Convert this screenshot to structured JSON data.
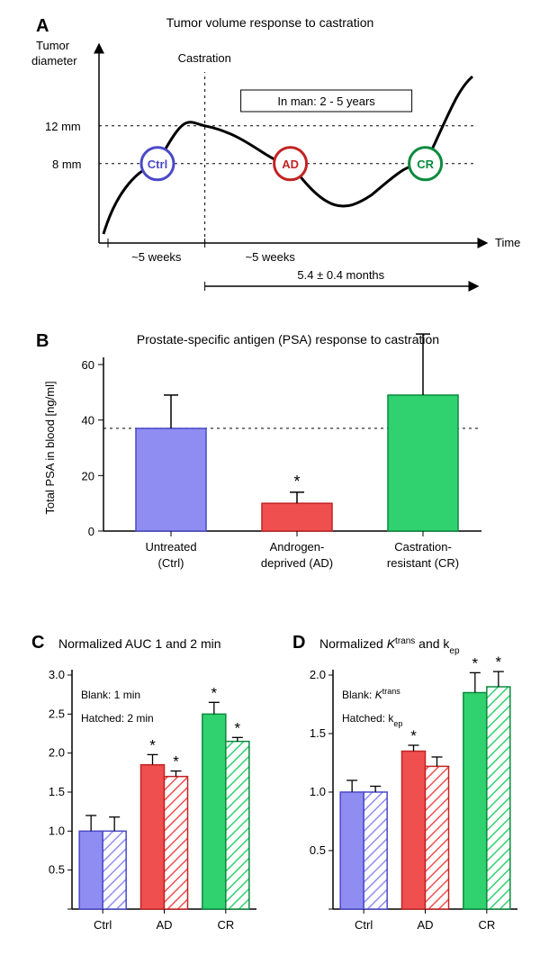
{
  "colors": {
    "ctrl_fill": "#8f8df2",
    "ctrl_stroke": "#4a49c8",
    "ad_fill": "#ef4f4f",
    "ad_stroke": "#c22323",
    "cr_fill": "#2fd26f",
    "cr_stroke": "#0c8a3e",
    "black": "#000000",
    "white": "#ffffff",
    "bg": "#ffffff"
  },
  "panelA": {
    "label": "A",
    "title": "Tumor volume response to castration",
    "ylabel_top": "Tumor",
    "ylabel_bottom": "diameter",
    "xlabel": "Time",
    "castration_label": "Castration",
    "inman_label": "In man: 2 - 5 years",
    "ytick1": "12 mm",
    "ytick2": "8 mm",
    "xtick1": "~5 weeks",
    "xtick2": "~5 weeks",
    "duration": "5.4 ± 0.4 months",
    "nodes": {
      "ctrl": "Ctrl",
      "ad": "AD",
      "cr": "CR"
    }
  },
  "panelB": {
    "label": "B",
    "title": "Prostate-specific antigen (PSA) response to castration",
    "ylabel": "Total PSA in blood [ng/ml]",
    "ylim": [
      0,
      60
    ],
    "yticks": [
      0,
      20,
      40,
      60
    ],
    "ref_line": 37,
    "bars": [
      {
        "cat": "Untreated",
        "sub": "(Ctrl)",
        "value": 37,
        "err": 12,
        "annot": ""
      },
      {
        "cat": "Androgen-",
        "sub": "deprived (AD)",
        "value": 10,
        "err": 4,
        "annot": "*"
      },
      {
        "cat": "Castration-",
        "sub": "resistant (CR)",
        "value": 49,
        "err": 22,
        "annot": ""
      }
    ]
  },
  "panelC": {
    "label": "C",
    "title": "Normalized AUC 1 and 2 min",
    "legend_blank": "Blank: 1 min",
    "legend_hatch": "Hatched: 2 min",
    "ylim": [
      0,
      3.0
    ],
    "yticks": [
      0,
      "0.5",
      "1.0",
      "1.5",
      "2.0",
      "2.5",
      "3.0"
    ],
    "categories": [
      "Ctrl",
      "AD",
      "CR"
    ],
    "bars": [
      {
        "v1": 1.0,
        "e1": 0.2,
        "a1": "",
        "v2": 1.0,
        "e2": 0.18,
        "a2": ""
      },
      {
        "v1": 1.85,
        "e1": 0.13,
        "a1": "*",
        "v2": 1.7,
        "e2": 0.07,
        "a2": "*"
      },
      {
        "v1": 2.5,
        "e1": 0.15,
        "a1": "*",
        "v2": 2.15,
        "e2": 0.05,
        "a2": "*"
      }
    ]
  },
  "panelD": {
    "label": "D",
    "title_pre": "Normalized ",
    "title_k": "K",
    "title_sup": "trans",
    "title_and": " and k",
    "title_ep": "ep",
    "legend_blank_pre": "Blank: ",
    "legend_blank_k": "K",
    "legend_blank_sup": "trans",
    "legend_hatch_pre": "Hatched: k",
    "legend_hatch_sub": "ep",
    "ylim": [
      0,
      2.0
    ],
    "yticks": [
      0,
      "0.5",
      "1.0",
      "1.5",
      "2.0"
    ],
    "categories": [
      "Ctrl",
      "AD",
      "CR"
    ],
    "bars": [
      {
        "v1": 1.0,
        "e1": 0.1,
        "a1": "",
        "v2": 1.0,
        "e2": 0.05,
        "a2": ""
      },
      {
        "v1": 1.35,
        "e1": 0.05,
        "a1": "*",
        "v2": 1.22,
        "e2": 0.08,
        "a2": ""
      },
      {
        "v1": 1.85,
        "e1": 0.17,
        "a1": "*",
        "v2": 1.9,
        "e2": 0.13,
        "a2": "*"
      }
    ]
  }
}
